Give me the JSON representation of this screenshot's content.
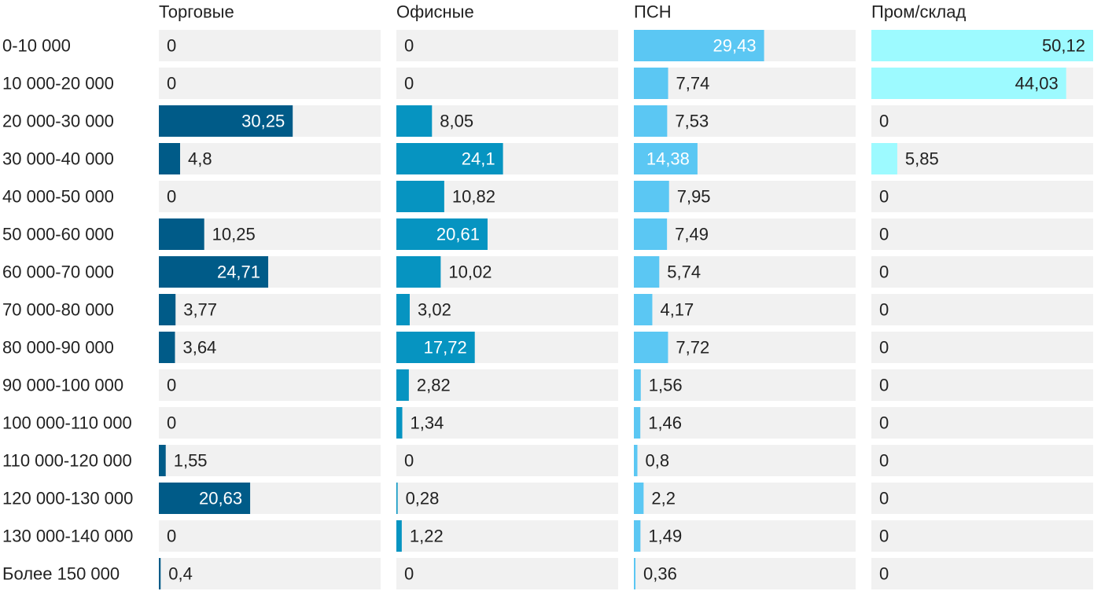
{
  "chart_data": {
    "type": "bar",
    "orientation": "horizontal",
    "layout": "small-multiples",
    "categories": [
      "0-10 000",
      "10 000-20 000",
      "20 000-30 000",
      "30 000-40 000",
      "40 000-50 000",
      "50 000-60 000",
      "60 000-70 000",
      "70 000-80 000",
      "80 000-90 000",
      "90 000-100 000",
      "100 000-110 000",
      "110 000-120 000",
      "120 000-130 000",
      "130 000-140 000",
      "Более 150 000"
    ],
    "series": [
      {
        "name": "Торговые",
        "color": "#005b88",
        "values": [
          0,
          0,
          30.25,
          4.8,
          0,
          10.25,
          24.71,
          3.77,
          3.64,
          0,
          0,
          1.55,
          20.63,
          0,
          0.4
        ],
        "labels": [
          "0",
          "0",
          "30,25",
          "4,8",
          "0",
          "10,25",
          "24,71",
          "3,77",
          "3,64",
          "0",
          "0",
          "1,55",
          "20,63",
          "0",
          "0,4"
        ]
      },
      {
        "name": "Офисные",
        "color": "#0694c1",
        "values": [
          0,
          0,
          8.05,
          24.1,
          10.82,
          20.61,
          10.02,
          3.02,
          17.72,
          2.82,
          1.34,
          0,
          0.28,
          1.22,
          0
        ],
        "labels": [
          "0",
          "0",
          "8,05",
          "24,1",
          "10,82",
          "20,61",
          "10,02",
          "3,02",
          "17,72",
          "2,82",
          "1,34",
          "0",
          "0,28",
          "1,22",
          "0"
        ]
      },
      {
        "name": "ПСН",
        "color": "#5bc7f3",
        "values": [
          29.43,
          7.74,
          7.53,
          14.38,
          7.95,
          7.49,
          5.74,
          4.17,
          7.72,
          1.56,
          1.46,
          0.8,
          2.2,
          1.49,
          0.36
        ],
        "labels": [
          "29,43",
          "7,74",
          "7,53",
          "14,38",
          "7,95",
          "7,49",
          "5,74",
          "4,17",
          "7,72",
          "1,56",
          "1,46",
          "0,8",
          "2,2",
          "1,49",
          "0,36"
        ]
      },
      {
        "name": "Пром/склад",
        "color": "#9dfaff",
        "values": [
          50.12,
          44.03,
          0,
          5.85,
          0,
          0,
          0,
          0,
          0,
          0,
          0,
          0,
          0,
          0,
          0
        ],
        "labels": [
          "50,12",
          "44,03",
          "0",
          "5,85",
          "0",
          "0",
          "0",
          "0",
          "0",
          "0",
          "0",
          "0",
          "0",
          "0",
          "0"
        ]
      }
    ],
    "track_color": "#f1f1f1",
    "label_color_inside": "#ffffff",
    "label_color_outside": "#222222"
  }
}
